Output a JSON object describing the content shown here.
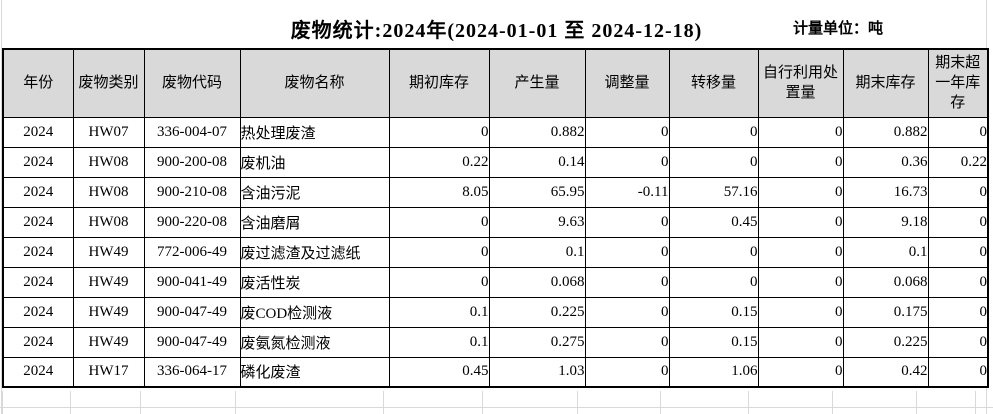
{
  "title": "废物统计:2024年(2024-01-01 至 2024-12-18)",
  "unit_label": "计量单位：吨",
  "colors": {
    "header_bg": "#d9d9d9",
    "border": "#000000",
    "faint_grid": "#d9d9d9",
    "text": "#000000"
  },
  "table": {
    "headers": [
      "年份",
      "废物类别",
      "废物代码",
      "废物名称",
      "期初库存",
      "产生量",
      "调整量",
      "转移量",
      "自行利用处置量",
      "期末库存",
      "期末超一年库存"
    ],
    "rows": [
      [
        "2024",
        "HW07",
        "336-004-07",
        "热处理废渣",
        "0",
        "0.882",
        "0",
        "0",
        "0",
        "0.882",
        "0"
      ],
      [
        "2024",
        "HW08",
        "900-200-08",
        "废机油",
        "0.22",
        "0.14",
        "0",
        "0",
        "0",
        "0.36",
        "0.22"
      ],
      [
        "2024",
        "HW08",
        "900-210-08",
        "含油污泥",
        "8.05",
        "65.95",
        "-0.11",
        "57.16",
        "0",
        "16.73",
        "0"
      ],
      [
        "2024",
        "HW08",
        "900-220-08",
        "含油磨屑",
        "0",
        "9.63",
        "0",
        "0.45",
        "0",
        "9.18",
        "0"
      ],
      [
        "2024",
        "HW49",
        "772-006-49",
        "废过滤渣及过滤纸",
        "0",
        "0.1",
        "0",
        "0",
        "0",
        "0.1",
        "0"
      ],
      [
        "2024",
        "HW49",
        "900-041-49",
        "废活性炭",
        "0",
        "0.068",
        "0",
        "0",
        "0",
        "0.068",
        "0"
      ],
      [
        "2024",
        "HW49",
        "900-047-49",
        "废COD检测液",
        "0.1",
        "0.225",
        "0",
        "0.15",
        "0",
        "0.175",
        "0"
      ],
      [
        "2024",
        "HW49",
        "900-047-49",
        "废氨氮检测液",
        "0.1",
        "0.275",
        "0",
        "0.15",
        "0",
        "0.225",
        "0"
      ],
      [
        "2024",
        "HW17",
        "336-064-17",
        "磷化废渣",
        "0.45",
        "1.03",
        "0",
        "1.06",
        "0",
        "0.42",
        "0"
      ]
    ]
  }
}
